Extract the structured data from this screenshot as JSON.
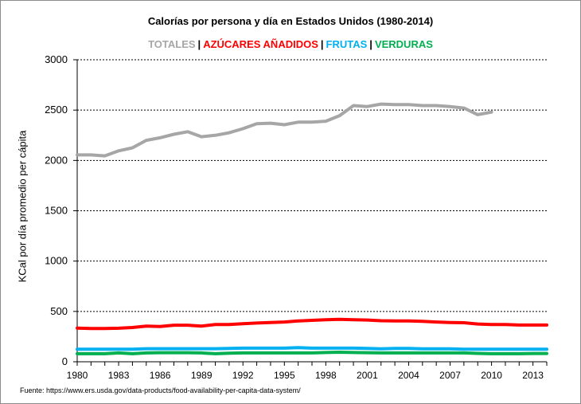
{
  "chart_data": {
    "type": "line",
    "title": "Calorías por persona y día en Estados Unidos (1980-2014)",
    "ylabel": "KCal por día promedio per cápita",
    "xlabel": "",
    "source": "Fuente: https://www.ers.usda.gov/data-products/food-availability-per-capita-data-system/",
    "ylim": [
      0,
      3000
    ],
    "yticks": [
      0,
      500,
      1000,
      1500,
      2000,
      2500,
      3000
    ],
    "xlim": [
      1980,
      2014
    ],
    "xticks": [
      1980,
      1983,
      1986,
      1989,
      1992,
      1995,
      1998,
      2001,
      2004,
      2007,
      2010,
      2013
    ],
    "grid": "horizontal dashed",
    "legend_position": "top-center",
    "series": [
      {
        "name": "TOTALES",
        "color": "#a6a6a6",
        "x": [
          1980,
          1981,
          1982,
          1983,
          1984,
          1985,
          1986,
          1987,
          1988,
          1989,
          1990,
          1991,
          1992,
          1993,
          1994,
          1995,
          1996,
          1997,
          1998,
          1999,
          2000,
          2001,
          2002,
          2003,
          2004,
          2005,
          2006,
          2007,
          2008,
          2009,
          2010
        ],
        "values": [
          2055,
          2055,
          2045,
          2095,
          2125,
          2200,
          2225,
          2260,
          2285,
          2235,
          2250,
          2275,
          2315,
          2365,
          2370,
          2355,
          2380,
          2380,
          2390,
          2445,
          2545,
          2535,
          2560,
          2555,
          2555,
          2545,
          2545,
          2535,
          2520,
          2455,
          2480
        ]
      },
      {
        "name": "AZÚCARES AÑADIDOS",
        "color": "#ff0000",
        "x": [
          1980,
          1981,
          1982,
          1983,
          1984,
          1985,
          1986,
          1987,
          1988,
          1989,
          1990,
          1991,
          1992,
          1993,
          1994,
          1995,
          1996,
          1997,
          1998,
          1999,
          2000,
          2001,
          2002,
          2003,
          2004,
          2005,
          2006,
          2007,
          2008,
          2009,
          2010,
          2011,
          2012,
          2013,
          2014
        ],
        "values": [
          335,
          330,
          330,
          333,
          340,
          355,
          350,
          363,
          363,
          355,
          370,
          370,
          378,
          385,
          390,
          395,
          405,
          412,
          418,
          422,
          418,
          415,
          408,
          405,
          405,
          402,
          395,
          390,
          388,
          375,
          370,
          370,
          365,
          365,
          365
        ]
      },
      {
        "name": "FRUTAS",
        "color": "#00b0f0",
        "x": [
          1980,
          1981,
          1982,
          1983,
          1984,
          1985,
          1986,
          1987,
          1988,
          1989,
          1990,
          1991,
          1992,
          1993,
          1994,
          1995,
          1996,
          1997,
          1998,
          1999,
          2000,
          2001,
          2002,
          2003,
          2004,
          2005,
          2006,
          2007,
          2008,
          2009,
          2010,
          2011,
          2012,
          2013,
          2014
        ],
        "values": [
          125,
          125,
          125,
          125,
          125,
          130,
          130,
          130,
          130,
          130,
          130,
          133,
          135,
          135,
          135,
          135,
          140,
          135,
          135,
          135,
          135,
          132,
          128,
          132,
          132,
          128,
          128,
          128,
          125,
          125,
          125,
          125,
          125,
          125,
          125
        ]
      },
      {
        "name": "VERDURAS",
        "color": "#00b050",
        "x": [
          1980,
          1981,
          1982,
          1983,
          1984,
          1985,
          1986,
          1987,
          1988,
          1989,
          1990,
          1991,
          1992,
          1993,
          1994,
          1995,
          1996,
          1997,
          1998,
          1999,
          2000,
          2001,
          2002,
          2003,
          2004,
          2005,
          2006,
          2007,
          2008,
          2009,
          2010,
          2011,
          2012,
          2013,
          2014
        ],
        "values": [
          80,
          80,
          80,
          88,
          80,
          88,
          90,
          90,
          90,
          88,
          80,
          85,
          88,
          88,
          88,
          88,
          88,
          88,
          92,
          95,
          92,
          90,
          88,
          88,
          88,
          88,
          88,
          88,
          88,
          83,
          80,
          80,
          80,
          82,
          82
        ]
      }
    ]
  }
}
